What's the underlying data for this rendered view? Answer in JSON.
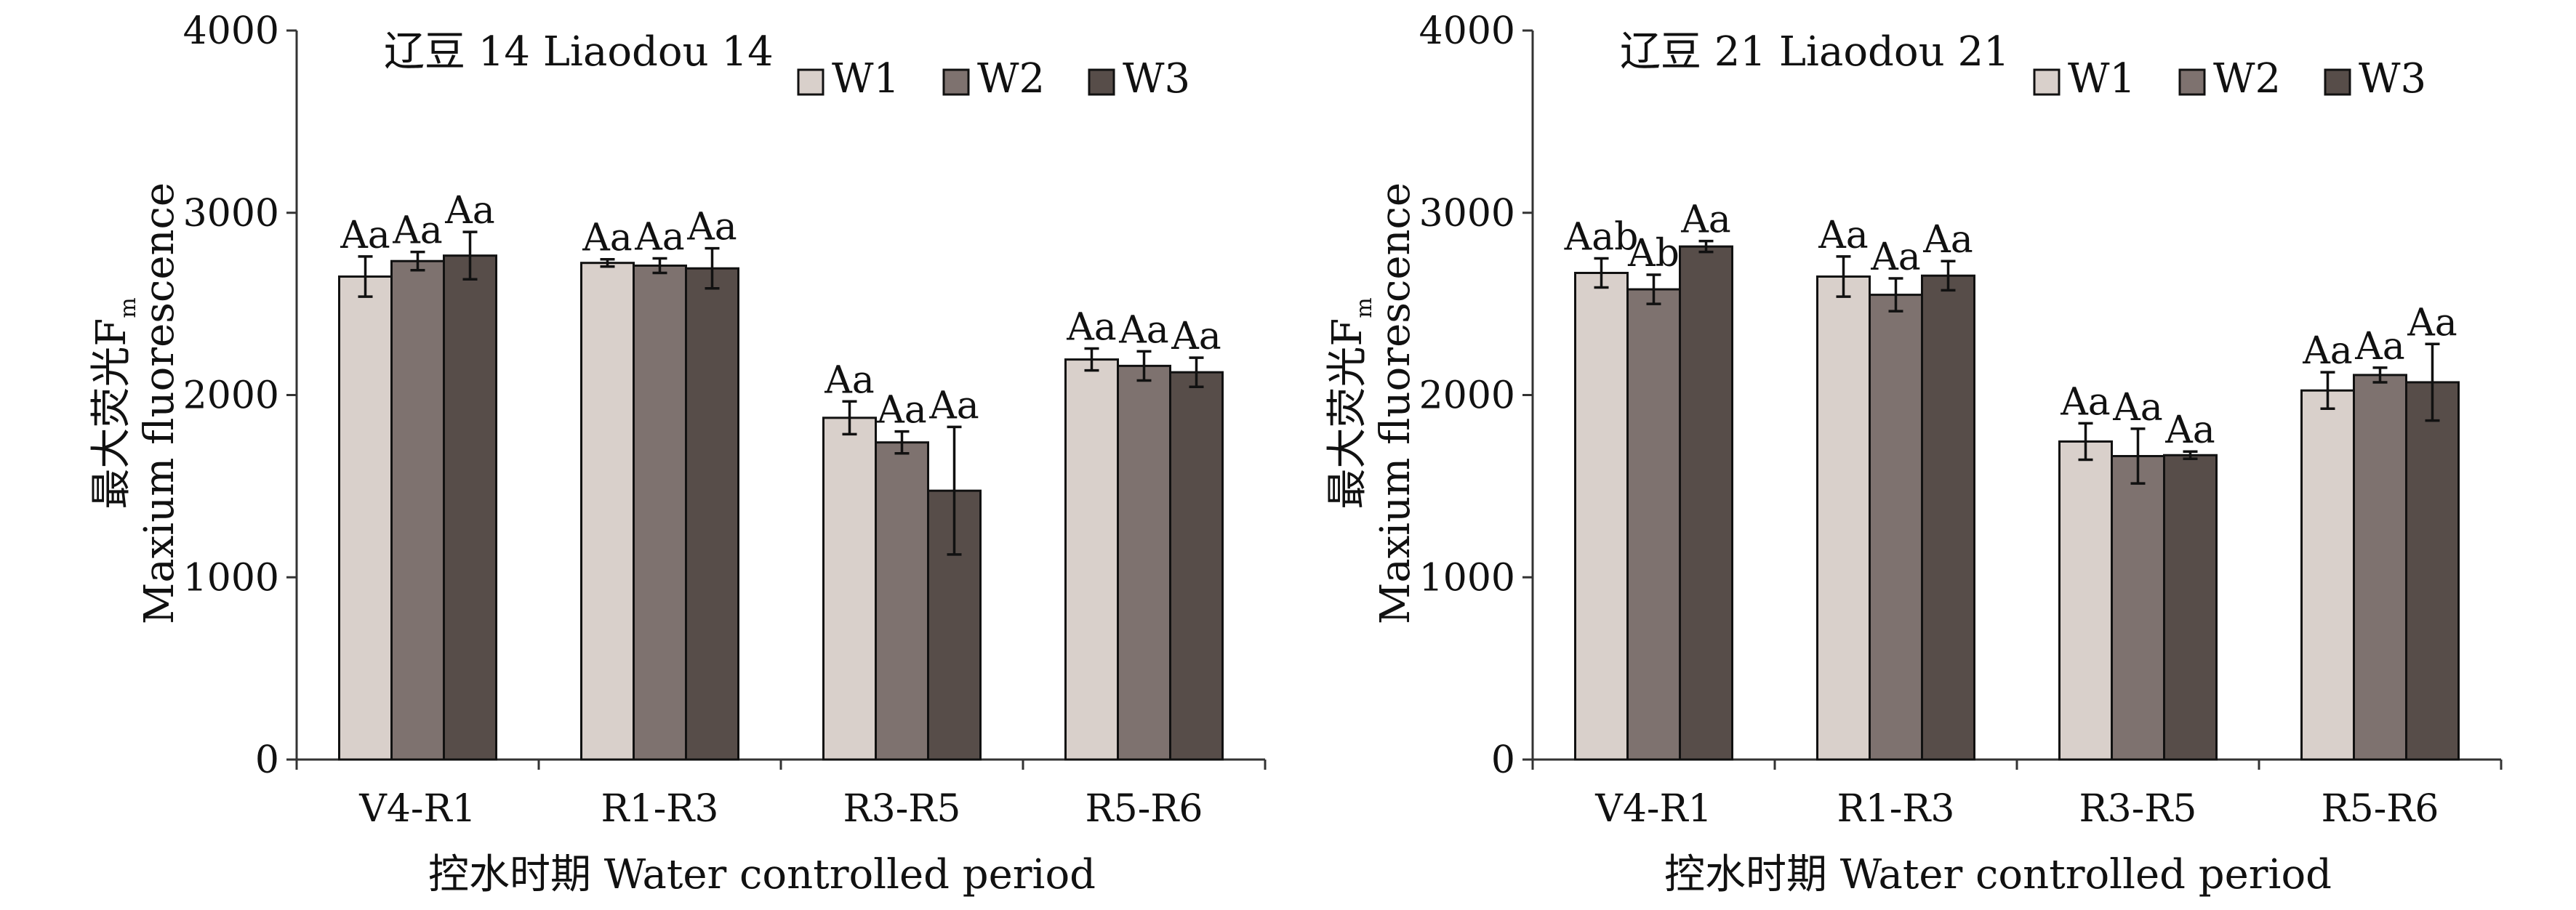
{
  "colors": {
    "W1": "#d9d0cb",
    "W2": "#7e726f",
    "W3": "#574d49"
  },
  "chart_data": [
    {
      "type": "bar",
      "title": "辽豆 14 Liaodou 14",
      "ylabel_cn": "最大荧光F",
      "ylabel_sub": "m",
      "ylabel_en": "Maxium fluorescence",
      "xlabel": "控水时期 Water controlled period",
      "categories": [
        "V4-R1",
        "R1-R3",
        "R3-R5",
        "R5-R6"
      ],
      "ylim": [
        0,
        4000
      ],
      "yticks": [
        "0",
        "1000",
        "2000",
        "3000",
        "4000"
      ],
      "legend_placement": "top-right",
      "series": [
        {
          "name": "W1",
          "values": [
            2650,
            2725,
            1875,
            2195
          ],
          "errors": [
            110,
            20,
            90,
            60
          ],
          "labels": [
            "Aa",
            "Aa",
            "Aa",
            "Aa"
          ]
        },
        {
          "name": "W2",
          "values": [
            2735,
            2710,
            1740,
            2160
          ],
          "errors": [
            50,
            40,
            60,
            80
          ],
          "labels": [
            "Aa",
            "Aa",
            "Aa",
            "Aa"
          ]
        },
        {
          "name": "W3",
          "values": [
            2765,
            2695,
            1475,
            2125
          ],
          "errors": [
            130,
            110,
            350,
            80
          ],
          "labels": [
            "Aa",
            "Aa",
            "Aa",
            "Aa"
          ]
        }
      ]
    },
    {
      "type": "bar",
      "title": "辽豆 21 Liaodou 21",
      "ylabel_cn": "最大荧光F",
      "ylabel_sub": "m",
      "ylabel_en": "Maxium fluorescence",
      "xlabel": "控水时期 Water controlled period",
      "categories": [
        "V4-R1",
        "R1-R3",
        "R3-R5",
        "R5-R6"
      ],
      "ylim": [
        0,
        4000
      ],
      "yticks": [
        "0",
        "1000",
        "2000",
        "3000",
        "4000"
      ],
      "legend_placement": "top-right",
      "series": [
        {
          "name": "W1",
          "values": [
            2670,
            2650,
            1745,
            2025
          ],
          "errors": [
            80,
            110,
            100,
            100
          ],
          "labels": [
            "Aab",
            "Aa",
            "Aa",
            "Aa"
          ]
        },
        {
          "name": "W2",
          "values": [
            2580,
            2550,
            1665,
            2110
          ],
          "errors": [
            80,
            90,
            150,
            40
          ],
          "labels": [
            "Ab",
            "Aa",
            "Aa",
            "Aa"
          ]
        },
        {
          "name": "W3",
          "values": [
            2815,
            2655,
            1670,
            2070
          ],
          "errors": [
            30,
            80,
            20,
            210
          ],
          "labels": [
            "Aa",
            "Aa",
            "Aa",
            "Aa"
          ]
        }
      ]
    }
  ]
}
